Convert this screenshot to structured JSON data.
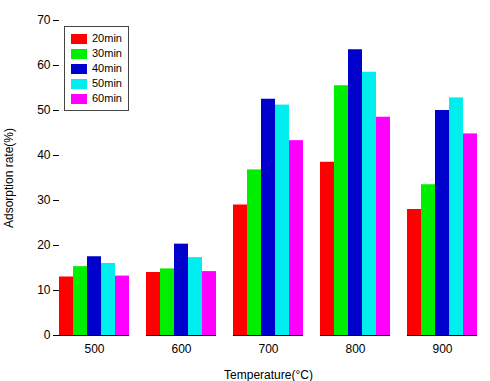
{
  "chart_data": {
    "type": "bar",
    "categories": [
      "500",
      "600",
      "700",
      "800",
      "900"
    ],
    "series": [
      {
        "name": "20min",
        "color": "#FF0000",
        "values": [
          13,
          14,
          29,
          38.5,
          28
        ]
      },
      {
        "name": "30min",
        "color": "#00EE00",
        "values": [
          15.3,
          14.8,
          36.8,
          55.5,
          33.5
        ]
      },
      {
        "name": "40min",
        "color": "#0000CC",
        "values": [
          17.5,
          20.3,
          52.5,
          63.5,
          50
        ]
      },
      {
        "name": "50min",
        "color": "#00EEEE",
        "values": [
          16,
          17.3,
          51.2,
          58.5,
          52.8
        ]
      },
      {
        "name": "60min",
        "color": "#FF00FF",
        "values": [
          13.2,
          14.2,
          43.3,
          48.5,
          44.8
        ]
      }
    ],
    "xlabel": "Temperature(°C)",
    "ylabel": "Adsorption rate(%)",
    "ylim": [
      0,
      70
    ],
    "yticks": [
      0,
      10,
      20,
      30,
      40,
      50,
      60,
      70
    ],
    "grid": false,
    "legend": "upper left"
  }
}
